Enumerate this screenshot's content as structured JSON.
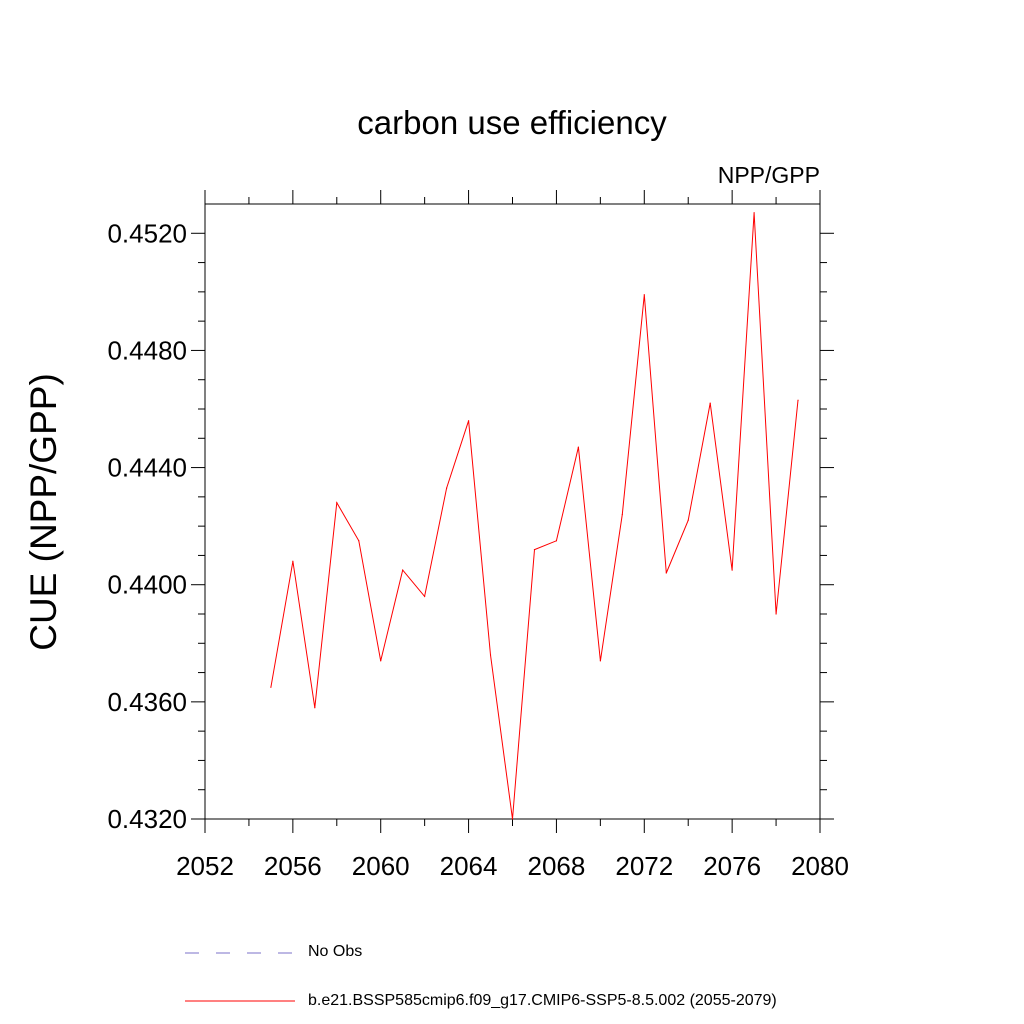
{
  "chart_data": {
    "type": "line",
    "title": "carbon use efficiency",
    "subtitle": "NPP/GPP",
    "xlabel": "",
    "ylabel": "CUE  (NPP/GPP)",
    "xlim": [
      2052,
      2080
    ],
    "ylim": [
      0.432,
      0.453
    ],
    "x_ticks": [
      "2052",
      "2056",
      "2060",
      "2064",
      "2068",
      "2072",
      "2076",
      "2080"
    ],
    "y_ticks": [
      "0.4320",
      "0.4360",
      "0.4400",
      "0.4440",
      "0.4480",
      "0.4520"
    ],
    "grid": false,
    "legend_position": "bottom",
    "series": [
      {
        "name": "b.e21.BSSP585cmip6.f09_g17.CMIP6-SSP5-8.5.002 (2055-2079)",
        "color": "#ff0000",
        "style": "solid",
        "x": [
          2055,
          2056,
          2057,
          2058,
          2059,
          2060,
          2061,
          2062,
          2063,
          2064,
          2065,
          2066,
          2067,
          2068,
          2069,
          2070,
          2071,
          2072,
          2073,
          2074,
          2075,
          2076,
          2077,
          2078,
          2079
        ],
        "y": [
          0.4365,
          0.4408,
          0.4358,
          0.4428,
          0.4415,
          0.4374,
          0.4405,
          0.4396,
          0.4433,
          0.4456,
          0.4376,
          0.432,
          0.4412,
          0.4415,
          0.4447,
          0.4374,
          0.4424,
          0.4499,
          0.4404,
          0.4422,
          0.4462,
          0.4405,
          0.4527,
          0.439,
          0.4463
        ]
      },
      {
        "name": "No Obs",
        "color": "#7b72c8",
        "style": "dashed",
        "x": [],
        "y": []
      }
    ]
  }
}
